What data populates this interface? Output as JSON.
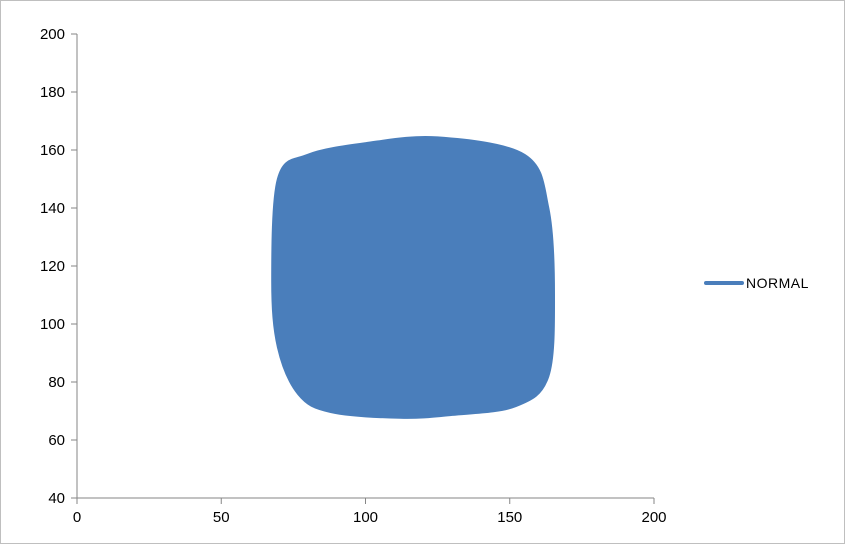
{
  "chart_data": {
    "type": "line",
    "title": "",
    "xlabel": "",
    "ylabel": "",
    "xlim": [
      0,
      200
    ],
    "ylim": [
      40,
      200
    ],
    "x_ticks": [
      0,
      50,
      100,
      150,
      200
    ],
    "y_ticks": [
      40,
      60,
      80,
      100,
      120,
      140,
      160,
      180,
      200
    ],
    "grid": false,
    "legend_position": "right",
    "series": [
      {
        "name": "NORMAL",
        "color": "#4a7ebb",
        "fill": true,
        "x": [
          70,
          80,
          100,
          125,
          155,
          163,
          165,
          163,
          152,
          130,
          112,
          88,
          77,
          70,
          68,
          70
        ],
        "y": [
          150,
          158,
          162,
          164,
          158,
          140,
          110,
          82,
          72,
          69,
          68,
          70,
          76,
          92,
          115,
          150
        ]
      }
    ]
  }
}
